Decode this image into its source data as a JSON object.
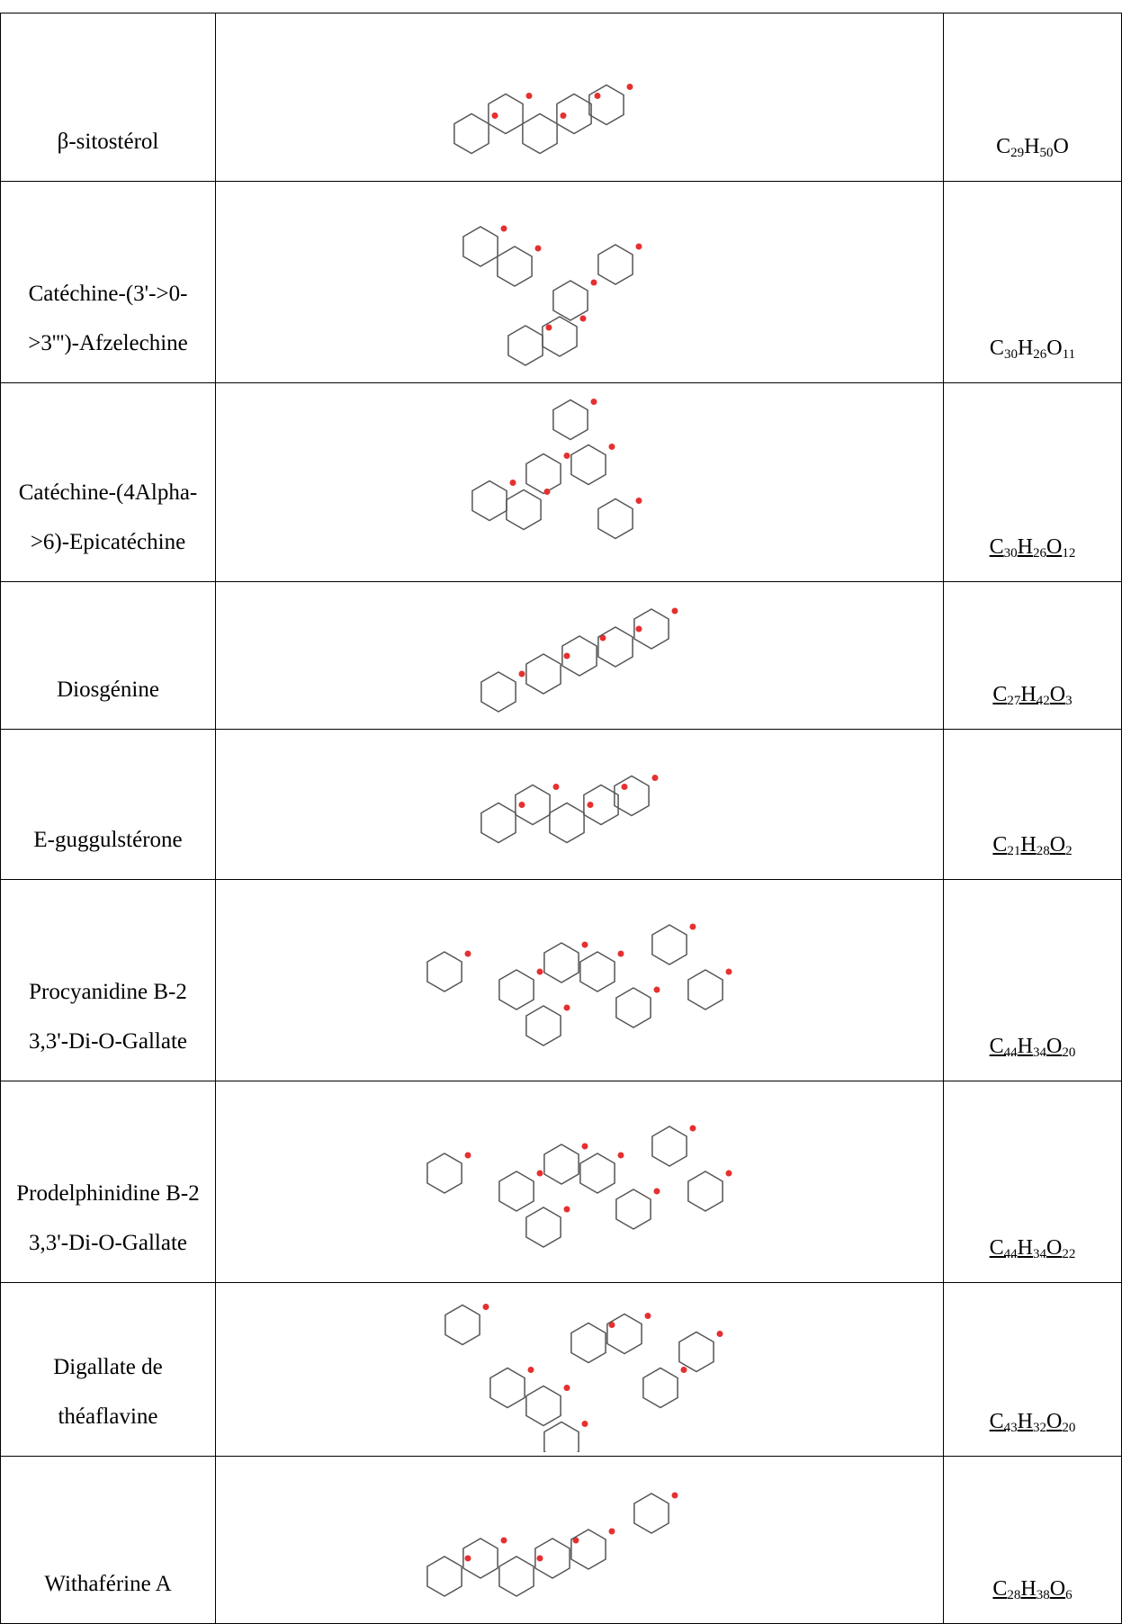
{
  "table": {
    "rows": [
      {
        "name": "β-sitostérol",
        "formula": [
          [
            "C",
            "29"
          ],
          [
            "H",
            "50"
          ],
          [
            "O"
          ]
        ],
        "underlined": false
      },
      {
        "name": "Catéchine-(3'->0->3''')-Afzelechine",
        "formula": [
          [
            "C",
            "30"
          ],
          [
            "H",
            "26"
          ],
          [
            "O",
            "11"
          ]
        ],
        "underlined": false
      },
      {
        "name": "Catéchine-(4Alpha->6)-Epicatéchine",
        "formula": [
          [
            "C",
            "30"
          ],
          [
            "H",
            "26"
          ],
          [
            "O",
            "12"
          ]
        ],
        "underlined": true
      },
      {
        "name": "Diosgénine",
        "formula": [
          [
            "C",
            "27"
          ],
          [
            "H",
            "42"
          ],
          [
            "O",
            "3"
          ]
        ],
        "underlined": true
      },
      {
        "name": "E-guggulstérone",
        "formula": [
          [
            "C",
            "21"
          ],
          [
            "H",
            "28"
          ],
          [
            "O",
            "2"
          ]
        ],
        "underlined": true
      },
      {
        "name": "Procyanidine B-2 3,3'-Di-O-Gallate",
        "formula": [
          [
            "C",
            "44"
          ],
          [
            "H",
            "34"
          ],
          [
            "O",
            "20"
          ]
        ],
        "underlined": true
      },
      {
        "name": "Prodelphinidine B-2 3,3'-Di-O-Gallate",
        "formula": [
          [
            "C",
            "44"
          ],
          [
            "H",
            "34"
          ],
          [
            "O",
            "22"
          ]
        ],
        "underlined": true
      },
      {
        "name": "Digallate de théaflavine",
        "formula": [
          [
            "C",
            "43"
          ],
          [
            "H",
            "32"
          ],
          [
            "O",
            "20"
          ]
        ],
        "underlined": true
      },
      {
        "name": "Withaférine A",
        "formula": [
          [
            "C",
            "28"
          ],
          [
            "H",
            "38"
          ],
          [
            "O",
            "6"
          ]
        ],
        "underlined": true
      }
    ]
  }
}
